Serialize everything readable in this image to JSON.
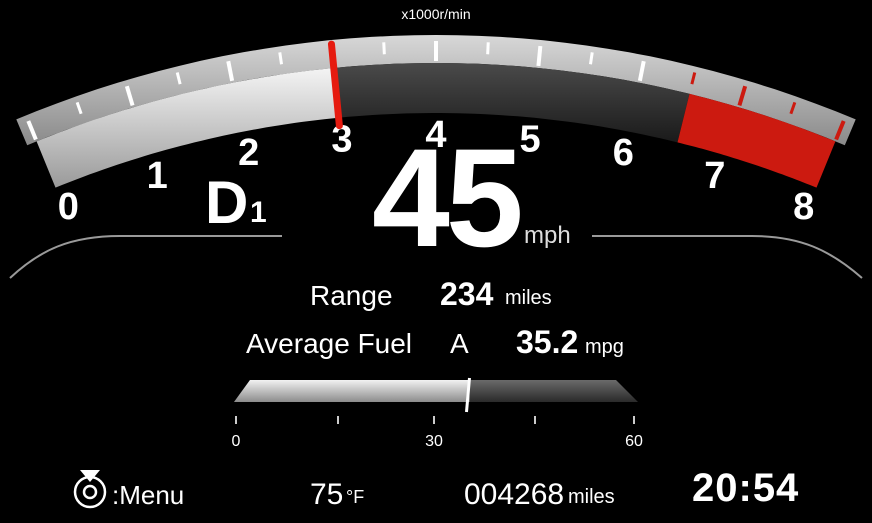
{
  "tachometer": {
    "unit_label": "x1000r/min",
    "ticks": [
      "0",
      "1",
      "2",
      "3",
      "4",
      "5",
      "6",
      "7",
      "8"
    ],
    "current_rpm_x1000": 3.0,
    "redline_start_x1000": 6.5,
    "colors": {
      "redline": "#cc1a10",
      "needle": "#e61b10"
    }
  },
  "transmission": {
    "gear_letter": "D",
    "gear_number": "1"
  },
  "speed": {
    "value": "45",
    "unit": "mph"
  },
  "range": {
    "label": "Range",
    "value": "234",
    "unit": "miles"
  },
  "fuel_economy": {
    "label": "Average Fuel",
    "trip": "A",
    "value": "35.2",
    "unit": "mpg"
  },
  "economy_gauge": {
    "ticks": [
      "0",
      "30",
      "60"
    ],
    "level_mpg": 35.2,
    "max_mpg": 60
  },
  "status": {
    "menu_label": ":Menu",
    "temperature": "75",
    "temperature_unit": "°F",
    "odometer": "004268",
    "odometer_unit": "miles",
    "clock": "20:54"
  }
}
